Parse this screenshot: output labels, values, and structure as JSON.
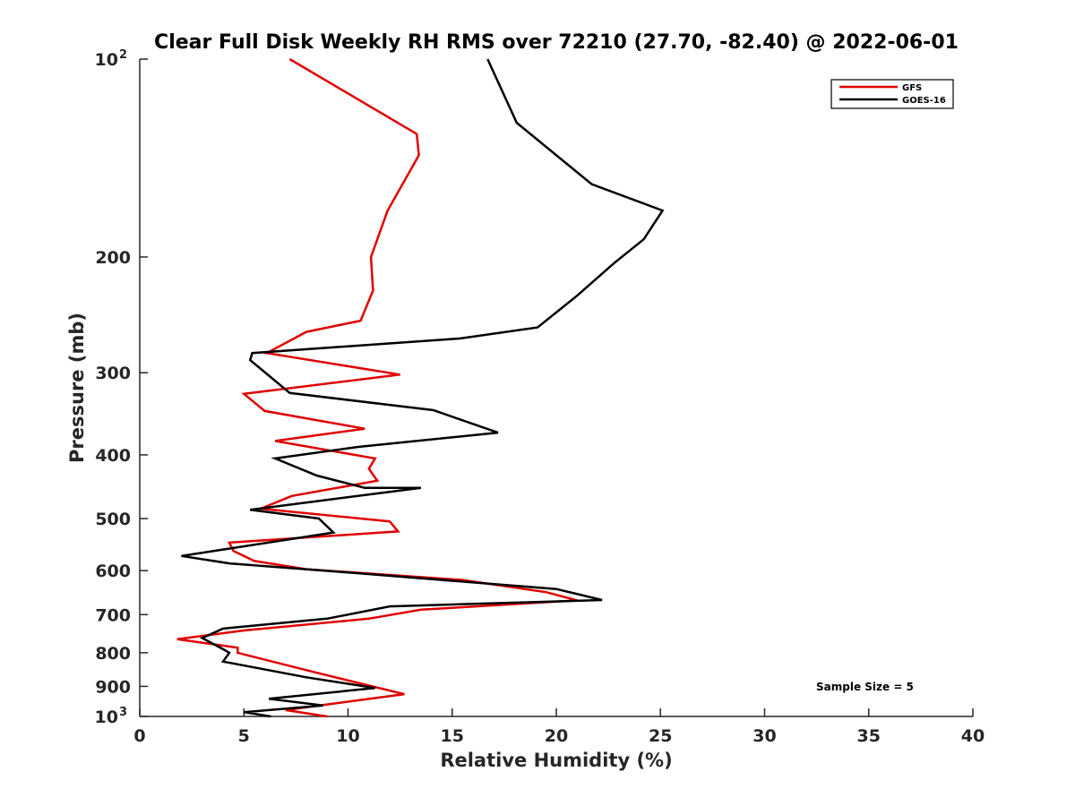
{
  "chart_data": {
    "type": "line",
    "title": "Clear Full Disk Weekly RH RMS over 72210 (27.70, -82.40) @ 2022-06-01",
    "xlabel": "Relative Humidity (%)",
    "ylabel": "Pressure (mb)",
    "xlim": [
      0,
      40
    ],
    "ylim": [
      100,
      1000
    ],
    "y_scale": "log",
    "y_reversed": true,
    "x_ticks": [
      "0",
      "5",
      "10",
      "15",
      "20",
      "25",
      "30",
      "35",
      "40"
    ],
    "y_ticks": [
      {
        "value": 100,
        "base": "10",
        "exp": "2"
      },
      {
        "value": 200,
        "label": "200"
      },
      {
        "value": 300,
        "label": "300"
      },
      {
        "value": 400,
        "label": "400"
      },
      {
        "value": 500,
        "label": "500"
      },
      {
        "value": 600,
        "label": "600"
      },
      {
        "value": 700,
        "label": "700"
      },
      {
        "value": 800,
        "label": "800"
      },
      {
        "value": 900,
        "label": "900"
      },
      {
        "value": 1000,
        "base": "10",
        "exp": "3"
      }
    ],
    "grid": false,
    "legend_position": "top-right",
    "annotation": "Sample Size = 5",
    "series": [
      {
        "name": "GFS",
        "color": "#e00000",
        "x": [
          7.2,
          13.3,
          13.4,
          11.9,
          11.1,
          11.2,
          10.6,
          8.0,
          6.1,
          12.5,
          5.0,
          6.0,
          10.8,
          6.5,
          11.3,
          11.0,
          11.4,
          7.3,
          5.8,
          12.0,
          12.4,
          4.3,
          4.5,
          5.5,
          8.0,
          15.5,
          19.5,
          21.0,
          13.5,
          11.0,
          5.0,
          1.8,
          4.7,
          4.7,
          8.3,
          12.7,
          7.0,
          9.0
        ],
        "y": [
          100,
          130,
          140,
          170,
          200,
          225,
          250,
          260,
          280,
          302,
          323,
          343,
          365,
          381,
          405,
          420,
          438,
          462,
          483,
          505,
          523,
          544,
          560,
          580,
          597,
          620,
          647,
          666,
          688,
          710,
          740,
          763,
          786,
          800,
          855,
          925,
          978,
          1000
        ]
      },
      {
        "name": "GOES-16",
        "color": "#000000",
        "x": [
          16.7,
          18.1,
          21.7,
          25.1,
          24.2,
          22.8,
          21.0,
          19.1,
          15.4,
          5.4,
          5.3,
          6.2,
          7.2,
          14.1,
          17.2,
          10.5,
          6.5,
          8.5,
          10.8,
          13.5,
          5.3,
          8.6,
          9.3,
          2.0,
          4.3,
          10.3,
          20.0,
          22.2,
          12.0,
          9.0,
          4.0,
          3.0,
          4.0,
          4.3,
          4.0,
          8.0,
          11.3,
          6.2,
          8.8,
          5.0,
          6.3
        ],
        "y": [
          100,
          125,
          155,
          170,
          188,
          204,
          229,
          256,
          266,
          280,
          287,
          303,
          322,
          342,
          370,
          389,
          405,
          430,
          449,
          449,
          485,
          500,
          525,
          570,
          585,
          605,
          640,
          665,
          680,
          710,
          735,
          760,
          790,
          800,
          825,
          872,
          905,
          940,
          962,
          985,
          1000
        ]
      }
    ]
  }
}
